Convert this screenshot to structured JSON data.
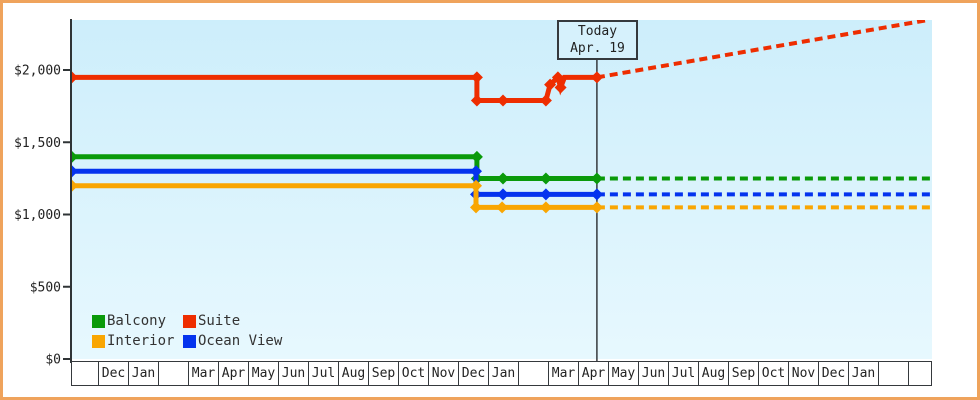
{
  "colors": {
    "frame_border": "#efa35c",
    "plot_bg_top": "#cdeefb",
    "plot_bg_bottom": "#e7f8fe",
    "axis": "#2f3436",
    "text": "#222222",
    "today_box_bg": "#d6f1fc",
    "today_box_border": "#35393d"
  },
  "chart_data": {
    "type": "line",
    "title": "",
    "xlabel": "",
    "ylabel": "",
    "grid": false,
    "legend_position": "bottom-left-inside",
    "y_ticks": [
      {
        "value": 0,
        "label": "$0"
      },
      {
        "value": 500,
        "label": "$500"
      },
      {
        "value": 1000,
        "label": "$1,000"
      },
      {
        "value": 1500,
        "label": "$1,500"
      },
      {
        "value": 2000,
        "label": "$2,000"
      }
    ],
    "y_range_visible": [
      0,
      2345
    ],
    "x_unit": "months-since-first-Dec-cell (fraction = day of month)",
    "x_month_labels": [
      "",
      "Dec",
      "Jan",
      "",
      "Mar",
      "Apr",
      "May",
      "Jun",
      "Jul",
      "Aug",
      "Sep",
      "Oct",
      "Nov",
      "Dec",
      "Jan",
      "",
      "Mar",
      "Apr",
      "May",
      "Jun",
      "Jul",
      "Aug",
      "Sep",
      "Oct",
      "Nov",
      "Dec",
      "Jan",
      "",
      ""
    ],
    "today": {
      "line1": "Today",
      "line2": "Apr. 19",
      "x": 16.63
    },
    "series": [
      {
        "name": "Suite",
        "color": "#ee2d00",
        "solid_points": [
          [
            -0.87,
            1949
          ],
          [
            12.63,
            1949
          ],
          [
            12.63,
            1789
          ],
          [
            14.93,
            1789
          ],
          [
            15.07,
            1899
          ],
          [
            15.33,
            1949
          ],
          [
            15.42,
            1879
          ],
          [
            15.55,
            1949
          ],
          [
            16.63,
            1949
          ]
        ],
        "markers": [
          [
            -0.87,
            1949
          ],
          [
            12.63,
            1949
          ],
          [
            12.63,
            1789
          ],
          [
            13.5,
            1789
          ],
          [
            14.93,
            1789
          ],
          [
            15.07,
            1899
          ],
          [
            15.33,
            1949
          ],
          [
            15.42,
            1879
          ],
          [
            16.63,
            1949
          ]
        ],
        "forecast_points": [
          [
            16.63,
            1949
          ],
          [
            27.65,
            2345
          ]
        ]
      },
      {
        "name": "Balcony",
        "color": "#0a9a0a",
        "solid_points": [
          [
            -0.87,
            1399
          ],
          [
            12.63,
            1399
          ],
          [
            12.63,
            1249
          ],
          [
            16.63,
            1249
          ]
        ],
        "markers": [
          [
            -0.87,
            1399
          ],
          [
            12.63,
            1399
          ],
          [
            12.63,
            1249
          ],
          [
            13.5,
            1249
          ],
          [
            14.93,
            1249
          ],
          [
            16.63,
            1249
          ]
        ],
        "forecast_points": [
          [
            16.63,
            1249
          ],
          [
            27.75,
            1249
          ]
        ]
      },
      {
        "name": "Ocean View",
        "color": "#0433ee",
        "solid_points": [
          [
            -0.87,
            1299
          ],
          [
            12.6,
            1299
          ],
          [
            12.6,
            1139
          ],
          [
            16.63,
            1139
          ]
        ],
        "markers": [
          [
            -0.87,
            1299
          ],
          [
            12.6,
            1299
          ],
          [
            12.6,
            1139
          ],
          [
            13.5,
            1139
          ],
          [
            14.93,
            1139
          ],
          [
            16.63,
            1139
          ]
        ],
        "forecast_points": [
          [
            16.63,
            1139
          ],
          [
            27.75,
            1139
          ]
        ]
      },
      {
        "name": "Interior",
        "color": "#f9a602",
        "solid_points": [
          [
            -0.87,
            1199
          ],
          [
            12.6,
            1199
          ],
          [
            12.6,
            1049
          ],
          [
            16.63,
            1049
          ]
        ],
        "markers": [
          [
            -0.87,
            1199
          ],
          [
            12.6,
            1199
          ],
          [
            12.6,
            1049
          ],
          [
            13.47,
            1049
          ],
          [
            14.93,
            1049
          ],
          [
            16.63,
            1049
          ]
        ],
        "forecast_points": [
          [
            16.63,
            1049
          ],
          [
            27.75,
            1049
          ]
        ]
      }
    ],
    "legend": [
      {
        "label": "Balcony",
        "color": "#0a9a0a"
      },
      {
        "label": "Suite",
        "color": "#ee2d00"
      },
      {
        "label": "Interior",
        "color": "#f9a602"
      },
      {
        "label": "Ocean View",
        "color": "#0433ee"
      }
    ]
  }
}
